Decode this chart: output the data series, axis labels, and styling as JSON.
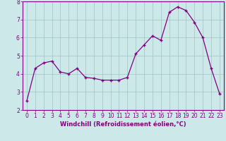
{
  "x": [
    0,
    1,
    2,
    3,
    4,
    5,
    6,
    7,
    8,
    9,
    10,
    11,
    12,
    13,
    14,
    15,
    16,
    17,
    18,
    19,
    20,
    21,
    22,
    23
  ],
  "y": [
    2.5,
    4.3,
    4.6,
    4.7,
    4.1,
    4.0,
    4.3,
    3.8,
    3.75,
    3.65,
    3.65,
    3.65,
    3.8,
    5.1,
    5.6,
    6.1,
    5.85,
    7.4,
    7.7,
    7.5,
    6.85,
    6.0,
    4.3,
    2.9
  ],
  "xlim": [
    -0.5,
    23.5
  ],
  "ylim": [
    2,
    8
  ],
  "yticks": [
    2,
    3,
    4,
    5,
    6,
    7,
    8
  ],
  "xticks": [
    0,
    1,
    2,
    3,
    4,
    5,
    6,
    7,
    8,
    9,
    10,
    11,
    12,
    13,
    14,
    15,
    16,
    17,
    18,
    19,
    20,
    21,
    22,
    23
  ],
  "xlabel": "Windchill (Refroidissement éolien,°C)",
  "line_color": "#800080",
  "marker": "+",
  "background_color": "#cce8e8",
  "grid_color": "#a0c4c4",
  "xlabel_color": "#800080",
  "tick_color": "#800080",
  "spine_color": "#800080"
}
